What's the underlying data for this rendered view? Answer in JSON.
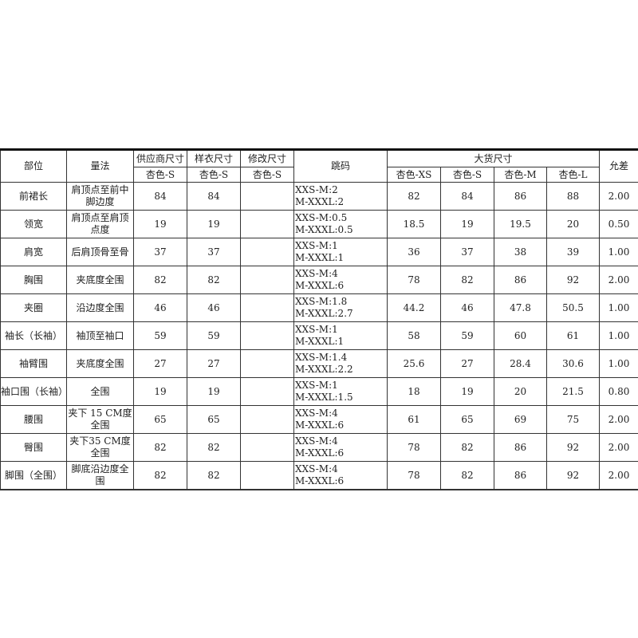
{
  "headers": {
    "part": "部位",
    "method": "量法",
    "supplier": "供应商尺寸",
    "sample": "样衣尺寸",
    "revised": "修改尺寸",
    "grading": "跳码",
    "bulk": "大货尺寸",
    "tolerance": "允差",
    "supplier_sub": "杏色-S",
    "sample_sub": "杏色-S",
    "revised_sub": "杏色-S",
    "bulk_sizes": [
      "杏色-XS",
      "杏色-S",
      "杏色-M",
      "杏色-L"
    ]
  },
  "rows": [
    {
      "part": "前裙长",
      "method": "肩顶点至前中脚边度",
      "supplier": "84",
      "sample": "84",
      "revised": "",
      "grade1": "XXS-M:2",
      "grade2": "M-XXXL:2",
      "xs": "82",
      "s": "84",
      "m": "86",
      "l": "88",
      "tol": "2.00"
    },
    {
      "part": "领宽",
      "method": "肩顶点至肩顶点度",
      "supplier": "19",
      "sample": "19",
      "revised": "",
      "grade1": "XXS-M:0.5",
      "grade2": "M-XXXL:0.5",
      "xs": "18.5",
      "s": "19",
      "m": "19.5",
      "l": "20",
      "tol": "0.50"
    },
    {
      "part": "肩宽",
      "method": "后肩顶骨至骨",
      "supplier": "37",
      "sample": "37",
      "revised": "",
      "grade1": "XXS-M:1",
      "grade2": "M-XXXL:1",
      "xs": "36",
      "s": "37",
      "m": "38",
      "l": "39",
      "tol": "1.00"
    },
    {
      "part": "胸围",
      "method": "夹底度全围",
      "supplier": "82",
      "sample": "82",
      "revised": "",
      "grade1": "XXS-M:4",
      "grade2": "M-XXXL:6",
      "xs": "78",
      "s": "82",
      "m": "86",
      "l": "92",
      "tol": "2.00"
    },
    {
      "part": "夹圈",
      "method": "沿边度全围",
      "supplier": "46",
      "sample": "46",
      "revised": "",
      "grade1": "XXS-M:1.8",
      "grade2": "M-XXXL:2.7",
      "xs": "44.2",
      "s": "46",
      "m": "47.8",
      "l": "50.5",
      "tol": "1.00"
    },
    {
      "part": "袖长（长袖）",
      "method": "袖顶至袖口",
      "supplier": "59",
      "sample": "59",
      "revised": "",
      "grade1": "XXS-M:1",
      "grade2": "M-XXXL:1",
      "xs": "58",
      "s": "59",
      "m": "60",
      "l": "61",
      "tol": "1.00"
    },
    {
      "part": "袖臂围",
      "method": "夹底度全围",
      "supplier": "27",
      "sample": "27",
      "revised": "",
      "grade1": "XXS-M:1.4",
      "grade2": "M-XXXL:2.2",
      "xs": "25.6",
      "s": "27",
      "m": "28.4",
      "l": "30.6",
      "tol": "1.00"
    },
    {
      "part": "袖口围（长袖）",
      "method": "全围",
      "supplier": "19",
      "sample": "19",
      "revised": "",
      "grade1": "XXS-M:1",
      "grade2": "M-XXXL:1.5",
      "xs": "18",
      "s": "19",
      "m": "20",
      "l": "21.5",
      "tol": "0.80"
    },
    {
      "part": "腰围",
      "method": "夹下 15 CM度全围",
      "supplier": "65",
      "sample": "65",
      "revised": "",
      "grade1": "XXS-M:4",
      "grade2": "M-XXXL:6",
      "xs": "61",
      "s": "65",
      "m": "69",
      "l": "75",
      "tol": "2.00"
    },
    {
      "part": "臀围",
      "method": "夹下35 CM度全围",
      "supplier": "82",
      "sample": "82",
      "revised": "",
      "grade1": "XXS-M:4",
      "grade2": "M-XXXL:6",
      "xs": "78",
      "s": "82",
      "m": "86",
      "l": "92",
      "tol": "2.00"
    },
    {
      "part": "脚围（全围）",
      "method": "脚底沿边度全围",
      "supplier": "82",
      "sample": "82",
      "revised": "",
      "grade1": "XXS-M:4",
      "grade2": "M-XXXL:6",
      "xs": "78",
      "s": "82",
      "m": "86",
      "l": "92",
      "tol": "2.00"
    }
  ]
}
